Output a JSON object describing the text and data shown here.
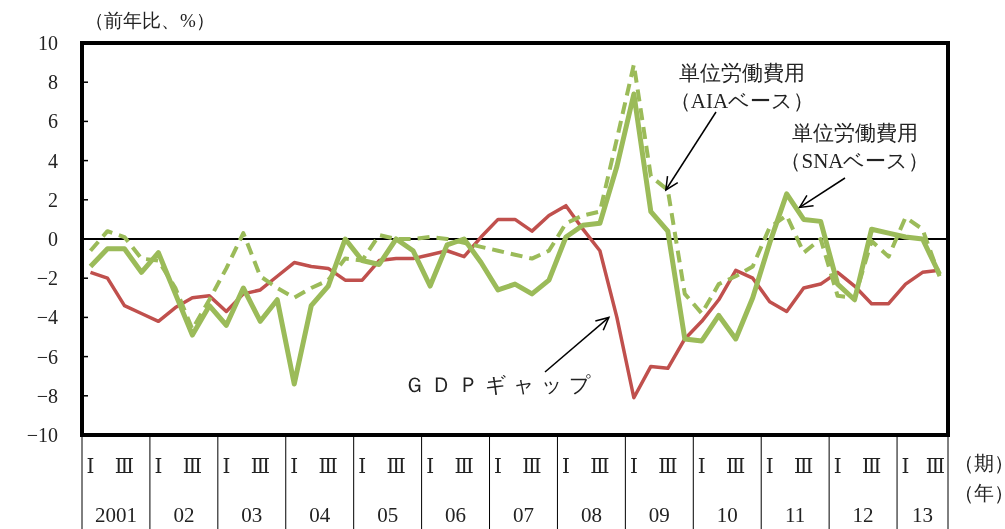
{
  "chart_data": {
    "type": "line",
    "ylabel": "（前年比、%）",
    "xlabel": "（期）",
    "categories": [
      "Ⅰ",
      null,
      "Ⅲ",
      null,
      "Ⅰ",
      null,
      "Ⅲ",
      null,
      "Ⅰ",
      null,
      "Ⅲ",
      null,
      "Ⅰ",
      null,
      "Ⅲ",
      null,
      "Ⅰ",
      null,
      "Ⅲ",
      null,
      "Ⅰ",
      null,
      "Ⅲ",
      null,
      "Ⅰ",
      null,
      "Ⅲ",
      null,
      "Ⅰ",
      null,
      "Ⅲ",
      null,
      "Ⅰ",
      null,
      "Ⅲ",
      null,
      "Ⅰ",
      null,
      "Ⅲ",
      null,
      "Ⅰ",
      null,
      "Ⅲ",
      null,
      "Ⅰ",
      null,
      "Ⅲ",
      null,
      "Ⅰ",
      null,
      "Ⅲ"
    ],
    "series": [
      {
        "name": "ＧＤＰギャップ",
        "color": "#c0504d",
        "line_style": "solid",
        "values": [
          -1.7,
          -2.0,
          -3.4,
          -3.8,
          -4.2,
          -3.5,
          -3.0,
          -2.9,
          -3.7,
          -2.8,
          -2.6,
          -1.9,
          -1.2,
          -1.4,
          -1.5,
          -2.1,
          -2.1,
          -1.1,
          -1.0,
          -1.0,
          -0.8,
          -0.6,
          -0.9,
          0.1,
          1.0,
          1.0,
          0.4,
          1.2,
          1.7,
          0.5,
          -0.6,
          -4.0,
          -8.1,
          -6.5,
          -6.6,
          -5.1,
          -4.2,
          -3.1,
          -1.6,
          -2.0,
          -3.2,
          -3.7,
          -2.5,
          -2.3,
          -1.7,
          -2.4,
          -3.3,
          -3.3,
          -2.3,
          -1.7,
          -1.6
        ]
      },
      {
        "name": "単位労働費用（AIAベース）",
        "color": "#9bbb59",
        "line_style": "dashed",
        "values": [
          -0.6,
          0.4,
          0.1,
          -1.0,
          -1.1,
          -2.5,
          -4.6,
          -3.1,
          -1.5,
          0.3,
          -1.9,
          -2.5,
          -3.0,
          -2.5,
          -2.1,
          -1.0,
          -1.1,
          0.2,
          0.0,
          0.0,
          0.1,
          0.0,
          -0.2,
          -0.4,
          -0.6,
          -0.8,
          -1.0,
          -0.6,
          0.8,
          1.2,
          1.4,
          5.1,
          8.9,
          3.2,
          2.5,
          -2.8,
          -3.8,
          -2.3,
          -1.9,
          -1.4,
          0.6,
          1.2,
          -0.7,
          0.0,
          -2.9,
          -3.0,
          -0.1,
          -0.9,
          1.1,
          0.5,
          -1.9
        ]
      },
      {
        "name": "単位労働費用（SNAベース）",
        "color": "#9bbb59",
        "line_style": "solid",
        "values": [
          -1.4,
          -0.5,
          -0.5,
          -1.7,
          -0.7,
          -2.8,
          -4.9,
          -3.4,
          -4.4,
          -2.5,
          -4.2,
          -3.1,
          -7.4,
          -3.4,
          -2.4,
          0.0,
          -1.1,
          -1.3,
          0.0,
          -0.6,
          -2.4,
          -0.3,
          0.0,
          -1.2,
          -2.6,
          -2.3,
          -2.8,
          -2.1,
          0.1,
          0.7,
          0.8,
          3.7,
          7.4,
          1.4,
          0.4,
          -5.1,
          -5.2,
          -3.9,
          -5.1,
          -3.0,
          -0.2,
          2.3,
          1.0,
          0.9,
          -2.3,
          -3.1,
          0.5,
          0.3,
          0.1,
          0.0,
          -1.8
        ]
      }
    ],
    "ylim": [
      -10,
      10
    ],
    "yticks": [
      -10,
      -8,
      -6,
      -4,
      -2,
      0,
      2,
      4,
      6,
      8,
      10
    ],
    "annotations": [
      "2001",
      "02",
      "03",
      "04",
      "05",
      "06",
      "07",
      "08",
      "09",
      "10",
      "11",
      "12",
      "13",
      "（年）"
    ]
  }
}
